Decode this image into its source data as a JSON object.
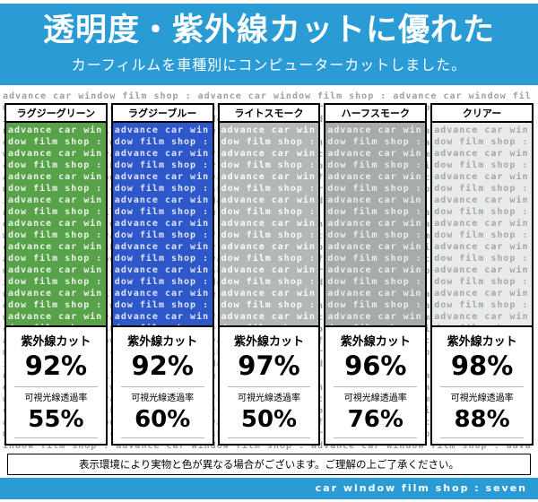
{
  "header": {
    "title": "透明度・紫外線カットに優れた",
    "subtitle": "カーフィルムを車種別にコンピューターカットしました。"
  },
  "pattern_text": "advance car window film shop : ",
  "films": [
    {
      "name": "ラグジーグリーン",
      "uv_label": "紫外線カット",
      "uv_value": "92%",
      "vlt_label": "可視光線透過率",
      "vlt_value": "55%",
      "color": "#58a34a",
      "text_color": "rgba(255,255,255,0.88)"
    },
    {
      "name": "ラグジーブルー",
      "uv_label": "紫外線カット",
      "uv_value": "92%",
      "vlt_label": "可視光線透過率",
      "vlt_value": "60%",
      "color": "#2e57c9",
      "text_color": "rgba(255,255,255,0.85)"
    },
    {
      "name": "ライトスモーク",
      "uv_label": "紫外線カット",
      "uv_value": "97%",
      "vlt_label": "可視光線透過率",
      "vlt_value": "50%",
      "color": "#b2b8b6",
      "text_color": "rgba(255,255,255,0.95)"
    },
    {
      "name": "ハーフスモーク",
      "uv_label": "紫外線カット",
      "uv_value": "96%",
      "vlt_label": "可視光線透過率",
      "vlt_value": "76%",
      "color": "#a6acab",
      "text_color": "rgba(240,243,242,0.92)"
    },
    {
      "name": "クリアー",
      "uv_label": "紫外線カット",
      "uv_value": "98%",
      "vlt_label": "可視光線透過率",
      "vlt_value": "88%",
      "color": "#e8ebe9",
      "text_color": "#a3a9a6"
    }
  ],
  "note": "表示環境により実物と色が異なる場合がございます。ご理解の上ご了承ください。",
  "footer": "car window film shop : seven",
  "colors": {
    "banner_blue": "#2a9bd5"
  }
}
